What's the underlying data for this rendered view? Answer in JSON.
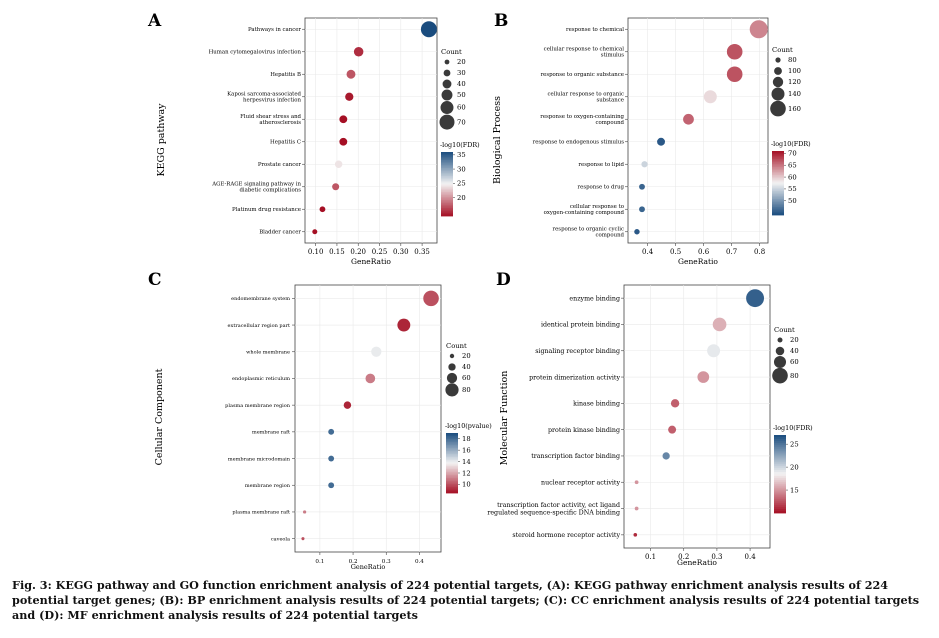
{
  "caption": "Fig. 3: KEGG pathway and GO function enrichment analysis of 224 potential targets, (A): KEGG pathway enrichment analysis results of 224 potential target genes; (B): BP enrichment analysis results of 224 potential targets; (C): CC enrichment analysis results of 224 potential targets and (D): MF enrichment analysis results of 224 potential targets",
  "colors": {
    "low_end": "#1a4c7e",
    "mid": "#f3f3f3",
    "high_end": "#a50f24",
    "axis": "#444444"
  },
  "chart_data": [
    {
      "type": "scatter",
      "panel": "A",
      "ylabel": "KEGG pathway",
      "xlabel": "GeneRatio",
      "xlim": [
        0.075,
        0.385
      ],
      "xticks": [
        "0.10",
        "0.15",
        "0.20",
        "0.25",
        "0.30",
        "0.35"
      ],
      "categories": [
        "Pathways in cancer",
        "Human cytomegalovirus infection",
        "Hepatitis B",
        "Kaposi sarcoma-associated herpesvirus infection",
        "Fluid shear stress and atherosclerosis",
        "Hepatitis C",
        "Prostate cancer",
        "AGE-RAGE signaling pathway in diabetic complications",
        "Platinum drug resistance",
        "Bladder cancer"
      ],
      "x": [
        0.366,
        0.201,
        0.183,
        0.179,
        0.165,
        0.165,
        0.154,
        0.147,
        0.116,
        0.098
      ],
      "count": [
        75,
        43,
        40,
        37,
        35,
        35,
        33,
        31,
        25,
        21
      ],
      "color_value": [
        37,
        15,
        17,
        14,
        13,
        13,
        24,
        17,
        13,
        12
      ],
      "size_legend": {
        "title": "Count",
        "labels": [
          "20",
          "30",
          "40",
          "50",
          "60",
          "70"
        ]
      },
      "color_legend": {
        "title": "-log10(FDR)",
        "range": [
          13.5,
          36
        ],
        "ticks": [
          "20",
          "25",
          "30",
          "35"
        ],
        "reversed": true
      }
    },
    {
      "type": "scatter",
      "panel": "B",
      "ylabel": "Biological Process",
      "xlabel": "GeneRatio",
      "xlim": [
        0.33,
        0.83
      ],
      "xticks": [
        "0.4",
        "0.5",
        "0.6",
        "0.7",
        "0.8"
      ],
      "categories": [
        "response to chemical",
        "cellular response to chemical stimulus",
        "response to organic substance",
        "cellular response to organic substance",
        "response to oxygen-containing compound",
        "response to endogenous stimulus",
        "response to lipid",
        "response to drug",
        "cellular response to oxygen-containing compound",
        "response to organic cyclic compound"
      ],
      "x": [
        0.797,
        0.711,
        0.711,
        0.624,
        0.546,
        0.448,
        0.389,
        0.38,
        0.38,
        0.362
      ],
      "count": [
        179,
        160,
        160,
        140,
        123,
        101,
        88,
        85,
        85,
        82
      ],
      "color_value": [
        64,
        67,
        67,
        59,
        66,
        45,
        55,
        46,
        46,
        45
      ],
      "size_legend": {
        "title": "Count",
        "labels": [
          "80",
          "100",
          "120",
          "140",
          "160"
        ]
      },
      "color_legend": {
        "title": "-log10(FDR)",
        "range": [
          44,
          71
        ],
        "ticks": [
          "50",
          "55",
          "60",
          "65",
          "70"
        ],
        "reversed": false
      }
    },
    {
      "type": "scatter",
      "panel": "C",
      "ylabel": "Cellular Component",
      "xlabel": "GeneRatio",
      "xlim": [
        0.025,
        0.465
      ],
      "xticks": [
        "0.1",
        "0.2",
        "0.3",
        "0.4"
      ],
      "categories": [
        "endomembrane system",
        "extracellular region part",
        "whole membrane",
        "endoplasmic reticulum",
        "plasma membrane region",
        "membrane raft",
        "membrane microdomain",
        "membrane region",
        "plasma membrane raft",
        "caveola"
      ],
      "x": [
        0.435,
        0.353,
        0.27,
        0.252,
        0.183,
        0.134,
        0.134,
        0.134,
        0.054,
        0.049
      ],
      "count": [
        96,
        78,
        60,
        56,
        41,
        30,
        30,
        30,
        12,
        11
      ],
      "color_value": [
        10,
        9,
        14,
        11,
        9,
        18,
        18,
        18,
        11,
        10
      ],
      "size_legend": {
        "title": "Count",
        "labels": [
          "20",
          "40",
          "60",
          "80"
        ]
      },
      "color_legend": {
        "title": "-log10(pvalue)",
        "range": [
          8.5,
          19
        ],
        "ticks": [
          "10",
          "12",
          "14",
          "16",
          "18"
        ],
        "reversed": true
      }
    },
    {
      "type": "scatter",
      "panel": "D",
      "ylabel": "Molecular Function",
      "xlabel": "GeneRatio",
      "xlim": [
        0.02,
        0.46
      ],
      "xticks": [
        "0.1",
        "0.2",
        "0.3",
        "0.4"
      ],
      "categories": [
        "enzyme binding",
        "identical protein binding",
        "signaling receptor binding",
        "protein dimerization activity",
        "kinase binding",
        "protein kinase binding",
        "transcription factor binding",
        "nuclear receptor activity",
        "transcription factor activity, ect ligand regulated sequence-specific DNA binding",
        "steroid hormone receptor activity"
      ],
      "x": [
        0.415,
        0.308,
        0.29,
        0.259,
        0.174,
        0.165,
        0.147,
        0.058,
        0.058,
        0.054
      ],
      "count": [
        93,
        69,
        65,
        58,
        39,
        37,
        33,
        13,
        13,
        12
      ],
      "color_value": [
        26,
        16,
        19,
        15,
        13,
        13,
        24,
        15,
        15,
        11
      ],
      "size_legend": {
        "title": "Count",
        "labels": [
          "20",
          "40",
          "60",
          "80"
        ]
      },
      "color_legend": {
        "title": "-log10(FDR)",
        "range": [
          10,
          27
        ],
        "ticks": [
          "15",
          "20",
          "25"
        ],
        "reversed": true
      }
    }
  ]
}
